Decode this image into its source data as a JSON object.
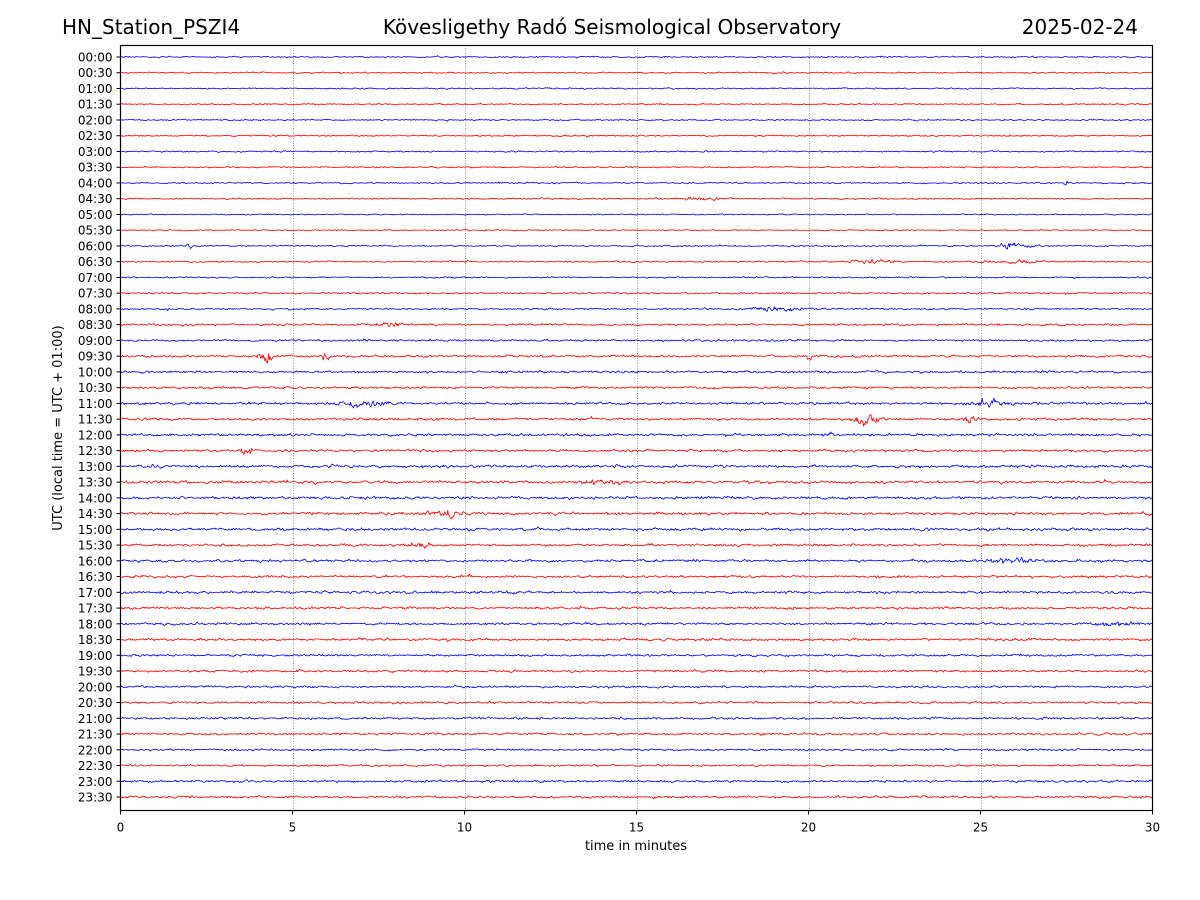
{
  "header": {
    "station": "HN_Station_PSZI4",
    "observatory": "Kövesligethy Radó Seismological Observatory",
    "date": "2025-02-24"
  },
  "chart_data": {
    "type": "line",
    "title": "Kövesligethy Radó Seismological Observatory",
    "xlabel": "time in minutes",
    "ylabel": "UTC (local time = UTC + 01:00)",
    "xlim": [
      0,
      30
    ],
    "x_ticks": [
      "0",
      "5",
      "10",
      "15",
      "20",
      "25",
      "30"
    ],
    "x_tick_values": [
      0,
      5,
      10,
      15,
      20,
      25,
      30
    ],
    "grid": "vertical dotted at x ticks",
    "colors": {
      "even_rows": "#0000ff",
      "odd_rows": "#ff0000",
      "grid": "#808080"
    },
    "rows": [
      "00:00",
      "00:30",
      "01:00",
      "01:30",
      "02:00",
      "02:30",
      "03:00",
      "03:30",
      "04:00",
      "04:30",
      "05:00",
      "05:30",
      "06:00",
      "06:30",
      "07:00",
      "07:30",
      "08:00",
      "08:30",
      "09:00",
      "09:30",
      "10:00",
      "10:30",
      "11:00",
      "11:30",
      "12:00",
      "12:30",
      "13:00",
      "13:30",
      "14:00",
      "14:30",
      "15:00",
      "15:30",
      "16:00",
      "16:30",
      "17:00",
      "17:30",
      "18:00",
      "18:30",
      "19:00",
      "19:30",
      "20:00",
      "20:30",
      "21:00",
      "21:30",
      "22:00",
      "22:30",
      "23:00",
      "23:30"
    ],
    "noise_level": [
      0.6,
      0.6,
      0.6,
      0.6,
      0.6,
      0.6,
      0.6,
      0.6,
      0.6,
      0.6,
      0.5,
      0.5,
      0.6,
      0.6,
      0.6,
      0.7,
      0.7,
      0.8,
      0.8,
      0.9,
      0.9,
      0.9,
      1.0,
      1.0,
      1.0,
      1.0,
      1.1,
      1.1,
      1.1,
      1.1,
      1.1,
      1.0,
      1.0,
      1.0,
      1.0,
      1.0,
      1.0,
      1.0,
      0.9,
      0.9,
      0.9,
      0.9,
      0.9,
      0.9,
      0.8,
      0.8,
      0.9,
      0.9
    ],
    "events": [
      {
        "row": "04:00",
        "minute": 27.5,
        "amplitude": 3,
        "duration": 0.1
      },
      {
        "row": "04:30",
        "minute": 15.5,
        "amplitude": 1.5,
        "duration": 0.1
      },
      {
        "row": "04:30",
        "minute": 17.0,
        "amplitude": 1.2,
        "duration": 1.0
      },
      {
        "row": "06:00",
        "minute": 2.0,
        "amplitude": 3.5,
        "duration": 0.1
      },
      {
        "row": "06:00",
        "minute": 26.0,
        "amplitude": 2.5,
        "duration": 0.8
      },
      {
        "row": "06:30",
        "minute": 21.8,
        "amplitude": 1.8,
        "duration": 0.8
      },
      {
        "row": "06:30",
        "minute": 25.8,
        "amplitude": 1.8,
        "duration": 1.2
      },
      {
        "row": "08:00",
        "minute": 19.0,
        "amplitude": 2.5,
        "duration": 1.0
      },
      {
        "row": "08:30",
        "minute": 7.8,
        "amplitude": 2.0,
        "duration": 0.6
      },
      {
        "row": "09:30",
        "minute": 4.2,
        "amplitude": 6.5,
        "duration": 0.3
      },
      {
        "row": "09:30",
        "minute": 5.9,
        "amplitude": 3.0,
        "duration": 0.3
      },
      {
        "row": "09:30",
        "minute": 20.0,
        "amplitude": 4.0,
        "duration": 0.15
      },
      {
        "row": "11:00",
        "minute": 7.0,
        "amplitude": 2.5,
        "duration": 1.0
      },
      {
        "row": "11:00",
        "minute": 25.2,
        "amplitude": 3.0,
        "duration": 0.8
      },
      {
        "row": "11:30",
        "minute": 21.7,
        "amplitude": 5.5,
        "duration": 0.6
      },
      {
        "row": "11:30",
        "minute": 24.7,
        "amplitude": 3.0,
        "duration": 0.3
      },
      {
        "row": "12:00",
        "minute": 20.6,
        "amplitude": 2.0,
        "duration": 0.2
      },
      {
        "row": "12:30",
        "minute": 3.6,
        "amplitude": 2.5,
        "duration": 0.4
      },
      {
        "row": "13:30",
        "minute": 14.0,
        "amplitude": 1.5,
        "duration": 1.0
      },
      {
        "row": "14:30",
        "minute": 9.5,
        "amplitude": 2.0,
        "duration": 0.8
      },
      {
        "row": "15:30",
        "minute": 8.8,
        "amplitude": 2.0,
        "duration": 0.7
      },
      {
        "row": "16:00",
        "minute": 16.7,
        "amplitude": 2.5,
        "duration": 0.1
      },
      {
        "row": "16:00",
        "minute": 25.9,
        "amplitude": 2.2,
        "duration": 1.0
      },
      {
        "row": "18:00",
        "minute": 29.0,
        "amplitude": 1.6,
        "duration": 0.8
      }
    ]
  }
}
